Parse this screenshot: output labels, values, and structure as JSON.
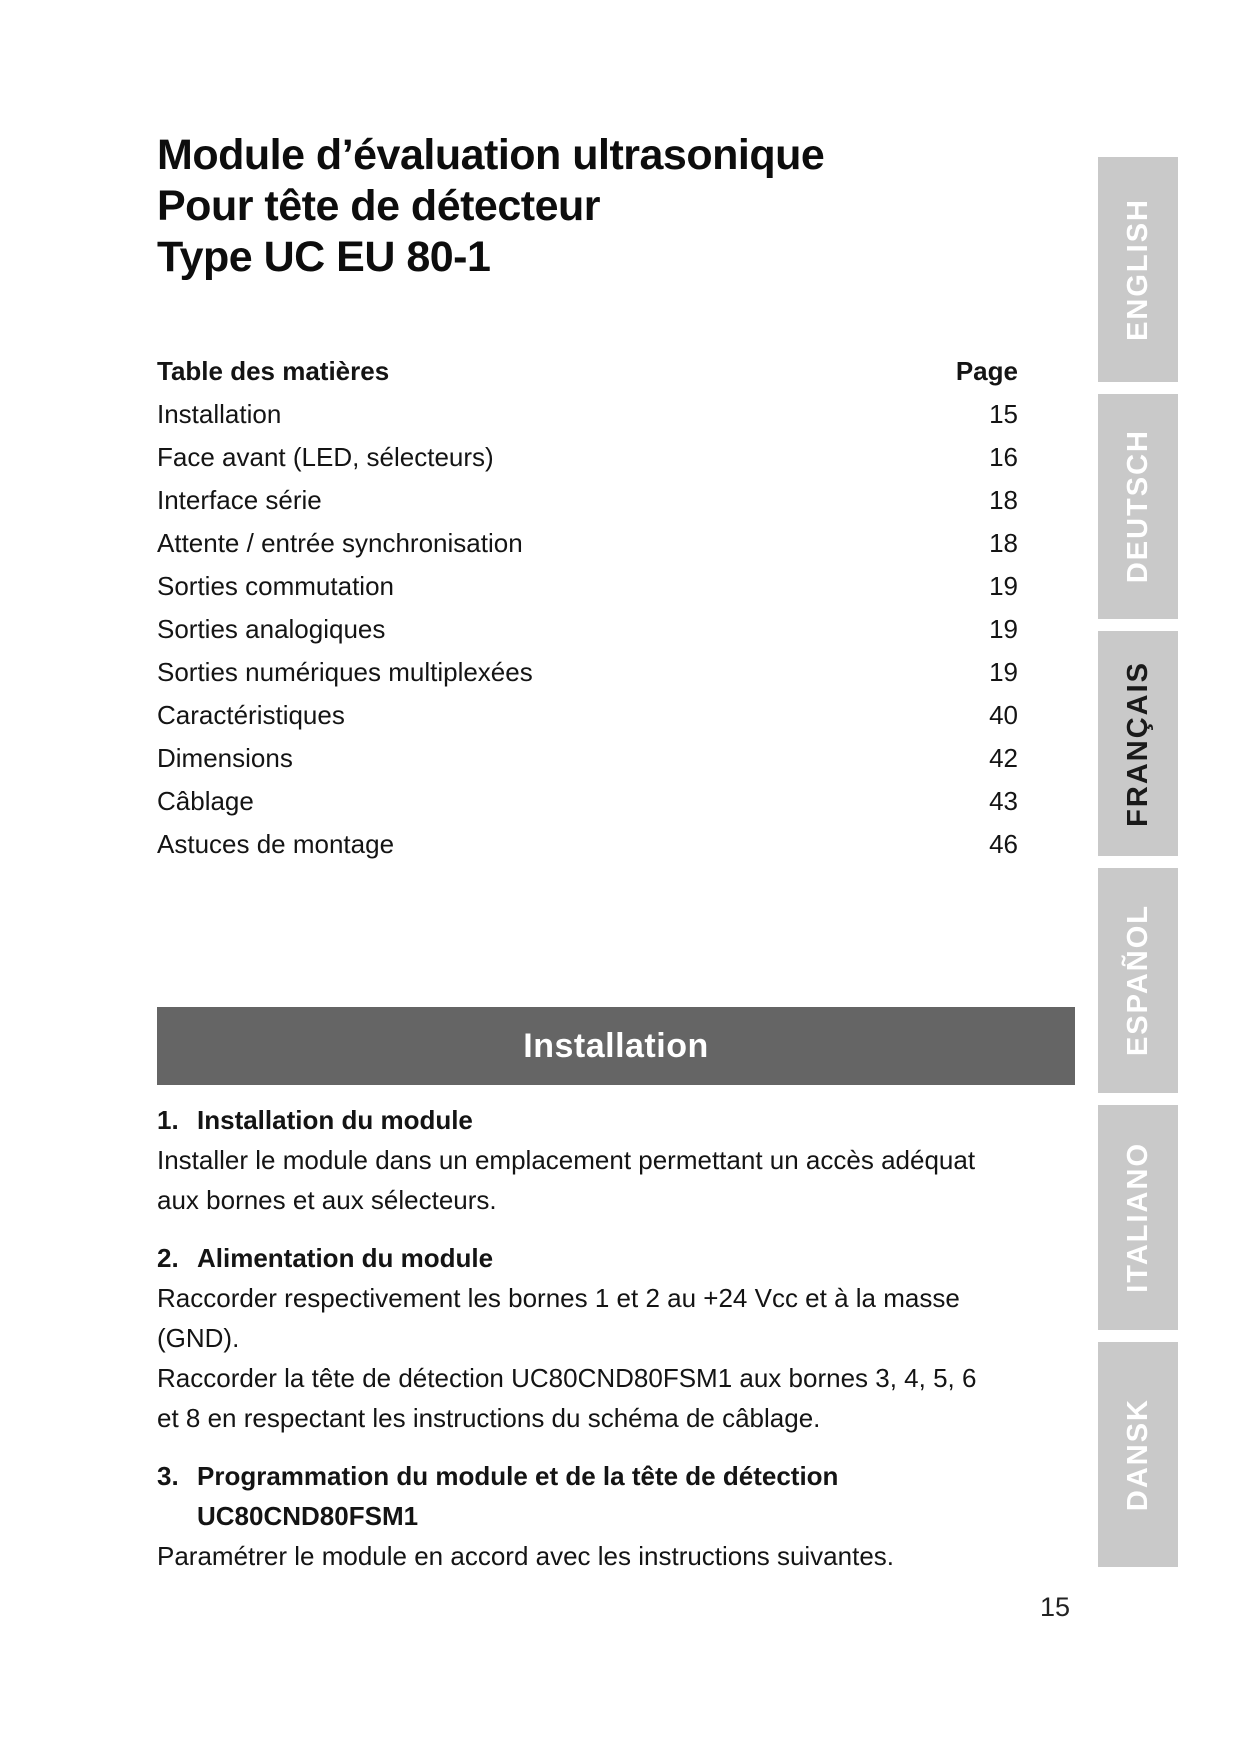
{
  "page": {
    "title_lines": [
      "Module d’évaluation ultrasonique",
      "Pour tête de détecteur",
      "Type UC EU 80-1"
    ],
    "page_number": "15"
  },
  "toc": {
    "heading": "Table des matières",
    "page_col_header": "Page",
    "items": [
      {
        "label": "Installation",
        "page": "15"
      },
      {
        "label": "Face avant (LED, sélecteurs)",
        "page": "16"
      },
      {
        "label": "Interface série",
        "page": "18"
      },
      {
        "label": "Attente / entrée synchronisation",
        "page": "18"
      },
      {
        "label": "Sorties commutation",
        "page": "19"
      },
      {
        "label": "Sorties analogiques",
        "page": "19"
      },
      {
        "label": "Sorties numériques multiplexées",
        "page": "19"
      },
      {
        "label": "Caractéristiques",
        "page": "40"
      },
      {
        "label": "Dimensions",
        "page": "42"
      },
      {
        "label": "Câblage",
        "page": "43"
      },
      {
        "label": "Astuces de montage",
        "page": "46"
      }
    ]
  },
  "section_bar": {
    "label": "Installation"
  },
  "sections": [
    {
      "num": "1.",
      "heading_lines": [
        "Installation du module"
      ],
      "lines": [
        "Installer le module dans un emplacement permettant un accès adéquat",
        "aux bornes et aux sélecteurs."
      ]
    },
    {
      "num": "2.",
      "heading_lines": [
        "Alimentation du module"
      ],
      "lines": [
        "Raccorder respectivement les bornes 1 et 2 au +24 Vcc et à la masse",
        "(GND).",
        "Raccorder la tête de détection UC80CND80FSM1 aux bornes 3, 4, 5, 6",
        "et 8 en respectant les instructions du schéma de câblage."
      ]
    },
    {
      "num": "3.",
      "heading_lines": [
        "Programmation du module et de la tête de détection",
        "UC80CND80FSM1"
      ],
      "lines": [
        "Paramétrer le module en accord avec les instructions suivantes."
      ]
    }
  ],
  "sidebar": {
    "tabs": [
      {
        "label": "ENGLISH",
        "active": false
      },
      {
        "label": "DEUTSCH",
        "active": false
      },
      {
        "label": "FRANÇAIS",
        "active": true
      },
      {
        "label": "ESPAÑOL",
        "active": false
      },
      {
        "label": "ITALIANO",
        "active": false
      },
      {
        "label": "DANSK",
        "active": false
      }
    ]
  },
  "colors": {
    "tab_bg": "#c9c9c9",
    "tab_text_inactive": "#ffffff",
    "tab_text_active": "#1a1a1a",
    "section_bar_bg": "#656565",
    "section_bar_text": "#ffffff",
    "text": "#141414",
    "page_bg": "#ffffff"
  }
}
